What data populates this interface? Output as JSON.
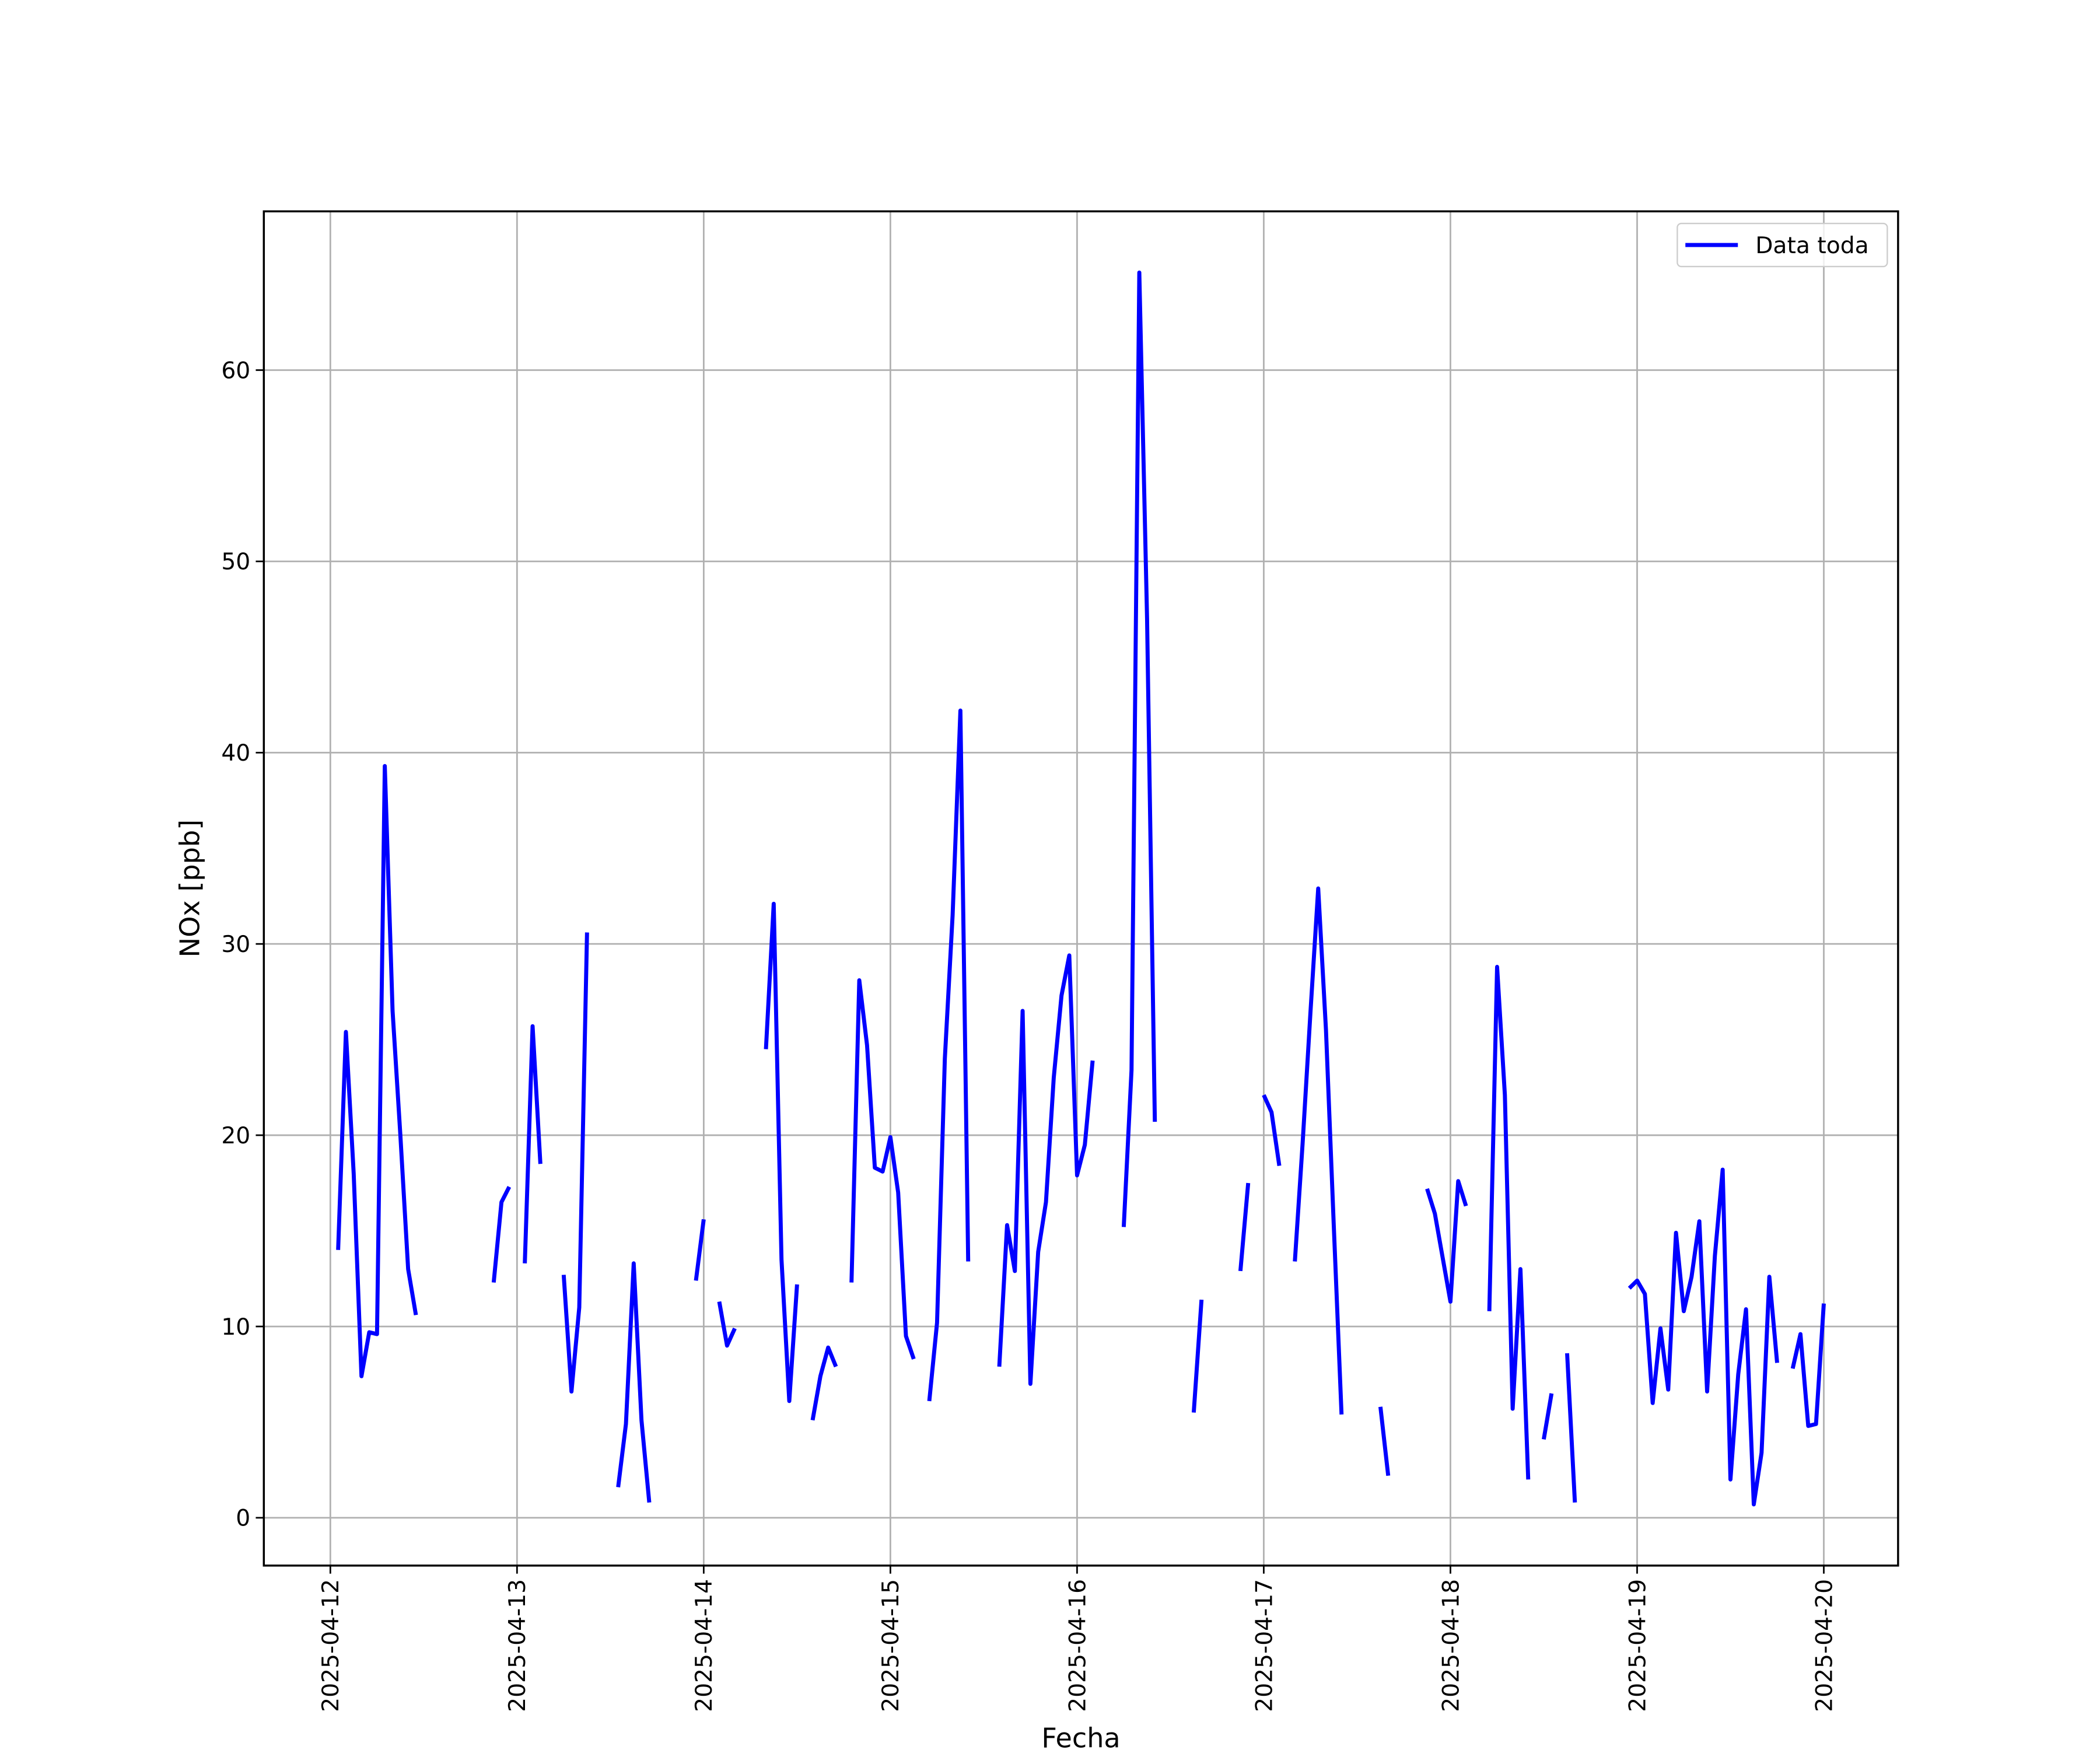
{
  "chart_data": {
    "type": "line",
    "xlabel": "Fecha",
    "ylabel": "NOx [ppb]",
    "x": [
      "2025-04-12T01:00",
      "2025-04-12T02:00",
      "2025-04-12T03:00",
      "2025-04-12T04:00",
      "2025-04-12T05:00",
      "2025-04-12T06:00",
      "2025-04-12T07:00",
      "2025-04-12T08:00",
      "2025-04-12T09:00",
      "2025-04-12T10:00",
      "2025-04-12T11:00",
      "2025-04-12T12:00",
      "2025-04-12T13:00",
      "2025-04-12T14:00",
      "2025-04-12T15:00",
      "2025-04-12T16:00",
      "2025-04-12T17:00",
      "2025-04-12T18:00",
      "2025-04-12T19:00",
      "2025-04-12T20:00",
      "2025-04-12T21:00",
      "2025-04-12T22:00",
      "2025-04-12T23:00",
      "2025-04-13T00:00",
      "2025-04-13T01:00",
      "2025-04-13T02:00",
      "2025-04-13T03:00",
      "2025-04-13T04:00",
      "2025-04-13T05:00",
      "2025-04-13T06:00",
      "2025-04-13T07:00",
      "2025-04-13T08:00",
      "2025-04-13T09:00",
      "2025-04-13T10:00",
      "2025-04-13T11:00",
      "2025-04-13T12:00",
      "2025-04-13T13:00",
      "2025-04-13T14:00",
      "2025-04-13T15:00",
      "2025-04-13T16:00",
      "2025-04-13T17:00",
      "2025-04-13T18:00",
      "2025-04-13T19:00",
      "2025-04-13T20:00",
      "2025-04-13T21:00",
      "2025-04-13T22:00",
      "2025-04-13T23:00",
      "2025-04-14T00:00",
      "2025-04-14T01:00",
      "2025-04-14T02:00",
      "2025-04-14T03:00",
      "2025-04-14T04:00",
      "2025-04-14T05:00",
      "2025-04-14T06:00",
      "2025-04-14T07:00",
      "2025-04-14T08:00",
      "2025-04-14T09:00",
      "2025-04-14T10:00",
      "2025-04-14T11:00",
      "2025-04-14T12:00",
      "2025-04-14T13:00",
      "2025-04-14T14:00",
      "2025-04-14T15:00",
      "2025-04-14T16:00",
      "2025-04-14T17:00",
      "2025-04-14T18:00",
      "2025-04-14T19:00",
      "2025-04-14T20:00",
      "2025-04-14T21:00",
      "2025-04-14T22:00",
      "2025-04-14T23:00",
      "2025-04-15T00:00",
      "2025-04-15T01:00",
      "2025-04-15T02:00",
      "2025-04-15T03:00",
      "2025-04-15T04:00",
      "2025-04-15T05:00",
      "2025-04-15T06:00",
      "2025-04-15T07:00",
      "2025-04-15T08:00",
      "2025-04-15T09:00",
      "2025-04-15T10:00",
      "2025-04-15T11:00",
      "2025-04-15T12:00",
      "2025-04-15T13:00",
      "2025-04-15T14:00",
      "2025-04-15T15:00",
      "2025-04-15T16:00",
      "2025-04-15T17:00",
      "2025-04-15T18:00",
      "2025-04-15T19:00",
      "2025-04-15T20:00",
      "2025-04-15T21:00",
      "2025-04-15T22:00",
      "2025-04-15T23:00",
      "2025-04-16T00:00",
      "2025-04-16T01:00",
      "2025-04-16T02:00",
      "2025-04-16T03:00",
      "2025-04-16T04:00",
      "2025-04-16T05:00",
      "2025-04-16T06:00",
      "2025-04-16T07:00",
      "2025-04-16T08:00",
      "2025-04-16T09:00",
      "2025-04-16T10:00",
      "2025-04-16T11:00",
      "2025-04-16T12:00",
      "2025-04-16T13:00",
      "2025-04-16T14:00",
      "2025-04-16T15:00",
      "2025-04-16T16:00",
      "2025-04-16T17:00",
      "2025-04-16T18:00",
      "2025-04-16T19:00",
      "2025-04-16T20:00",
      "2025-04-16T21:00",
      "2025-04-16T22:00",
      "2025-04-16T23:00",
      "2025-04-17T00:00",
      "2025-04-17T01:00",
      "2025-04-17T02:00",
      "2025-04-17T03:00",
      "2025-04-17T04:00",
      "2025-04-17T05:00",
      "2025-04-17T06:00",
      "2025-04-17T07:00",
      "2025-04-17T08:00",
      "2025-04-17T09:00",
      "2025-04-17T10:00",
      "2025-04-17T11:00",
      "2025-04-17T12:00",
      "2025-04-17T13:00",
      "2025-04-17T14:00",
      "2025-04-17T15:00",
      "2025-04-17T16:00",
      "2025-04-17T17:00",
      "2025-04-17T18:00",
      "2025-04-17T19:00",
      "2025-04-17T20:00",
      "2025-04-17T21:00",
      "2025-04-17T22:00",
      "2025-04-17T23:00",
      "2025-04-18T00:00",
      "2025-04-18T01:00",
      "2025-04-18T02:00",
      "2025-04-18T03:00",
      "2025-04-18T04:00",
      "2025-04-18T05:00",
      "2025-04-18T06:00",
      "2025-04-18T07:00",
      "2025-04-18T08:00",
      "2025-04-18T09:00",
      "2025-04-18T10:00",
      "2025-04-18T11:00",
      "2025-04-18T12:00",
      "2025-04-18T13:00",
      "2025-04-18T14:00",
      "2025-04-18T15:00",
      "2025-04-18T16:00",
      "2025-04-18T17:00",
      "2025-04-18T18:00",
      "2025-04-18T19:00",
      "2025-04-18T20:00",
      "2025-04-18T21:00",
      "2025-04-18T22:00",
      "2025-04-18T23:00",
      "2025-04-19T00:00",
      "2025-04-19T01:00",
      "2025-04-19T02:00",
      "2025-04-19T03:00",
      "2025-04-19T04:00",
      "2025-04-19T05:00",
      "2025-04-19T06:00",
      "2025-04-19T07:00",
      "2025-04-19T08:00",
      "2025-04-19T09:00",
      "2025-04-19T10:00",
      "2025-04-19T11:00",
      "2025-04-19T12:00",
      "2025-04-19T13:00",
      "2025-04-19T14:00",
      "2025-04-19T15:00",
      "2025-04-19T16:00",
      "2025-04-19T17:00",
      "2025-04-19T18:00",
      "2025-04-19T19:00",
      "2025-04-19T20:00",
      "2025-04-19T21:00",
      "2025-04-19T22:00",
      "2025-04-19T23:00",
      "2025-04-20T00:00"
    ],
    "series": [
      {
        "name": "Data toda",
        "color": "#0000ff",
        "values": [
          14.0,
          25.4,
          18,
          7.4,
          9.7,
          9.6,
          39.3,
          26.5,
          20,
          13,
          10.6,
          null,
          null,
          null,
          null,
          null,
          null,
          null,
          null,
          null,
          12.3,
          16.5,
          17.3,
          null,
          13.3,
          25.7,
          18.5,
          null,
          null,
          12.7,
          6.6,
          11,
          30.6,
          null,
          null,
          null,
          1.6,
          4.9,
          13.3,
          5.1,
          0.8,
          null,
          null,
          null,
          null,
          null,
          12.4,
          15.6,
          null,
          11.3,
          9.0,
          9.9,
          null,
          null,
          null,
          24.5,
          32.1,
          13.5,
          6.1,
          12.2,
          null,
          5.1,
          7.4,
          8.9,
          7.9,
          null,
          12.3,
          28.1,
          24.7,
          18.3,
          18.1,
          19.9,
          17,
          9.5,
          8.3,
          null,
          6.1,
          10.2,
          24,
          31.5,
          42.2,
          13.4,
          null,
          null,
          null,
          7.9,
          15.3,
          12.9,
          26.5,
          7.0,
          13.9,
          16.5,
          23,
          27.3,
          29.4,
          17.9,
          19.5,
          23.9,
          null,
          null,
          null,
          15.2,
          23.4,
          65.1,
          47,
          20.7,
          null,
          null,
          null,
          null,
          5.5,
          11.4,
          null,
          null,
          null,
          null,
          12.9,
          17.5,
          null,
          22.1,
          21.2,
          18.4,
          null,
          13.4,
          19.6,
          26.4,
          32.9,
          25.5,
          15.3,
          5.4,
          null,
          null,
          null,
          null,
          5.8,
          2.2,
          null,
          null,
          null,
          null,
          17.2,
          15.9,
          13.6,
          11.3,
          17.6,
          16.3,
          null,
          null,
          10.8,
          28.8,
          22.1,
          5.7,
          13,
          2.0,
          null,
          4.1,
          6.5,
          null,
          8.6,
          0.8,
          null,
          null,
          null,
          null,
          null,
          null,
          12.0,
          12.4,
          11.7,
          6.0,
          9.9,
          6.7,
          14.9,
          10.8,
          12.6,
          15.5,
          6.6,
          13.7,
          18.2,
          2.0,
          7.5,
          10.9,
          0.7,
          3.4,
          12.6,
          8.1,
          null,
          7.8,
          9.6,
          4.8,
          4.9,
          11.2
        ]
      }
    ],
    "xlim": [
      "2025-04-11T15:27",
      "2025-04-20T09:33"
    ],
    "xticks": [
      "2025-04-12",
      "2025-04-13",
      "2025-04-14",
      "2025-04-15",
      "2025-04-16",
      "2025-04-17",
      "2025-04-18",
      "2025-04-19",
      "2025-04-20"
    ],
    "ylim": [
      -2.5,
      68.3
    ],
    "yticks": [
      0,
      10,
      20,
      30,
      40,
      50,
      60
    ],
    "grid": true,
    "legend": "upper right"
  }
}
